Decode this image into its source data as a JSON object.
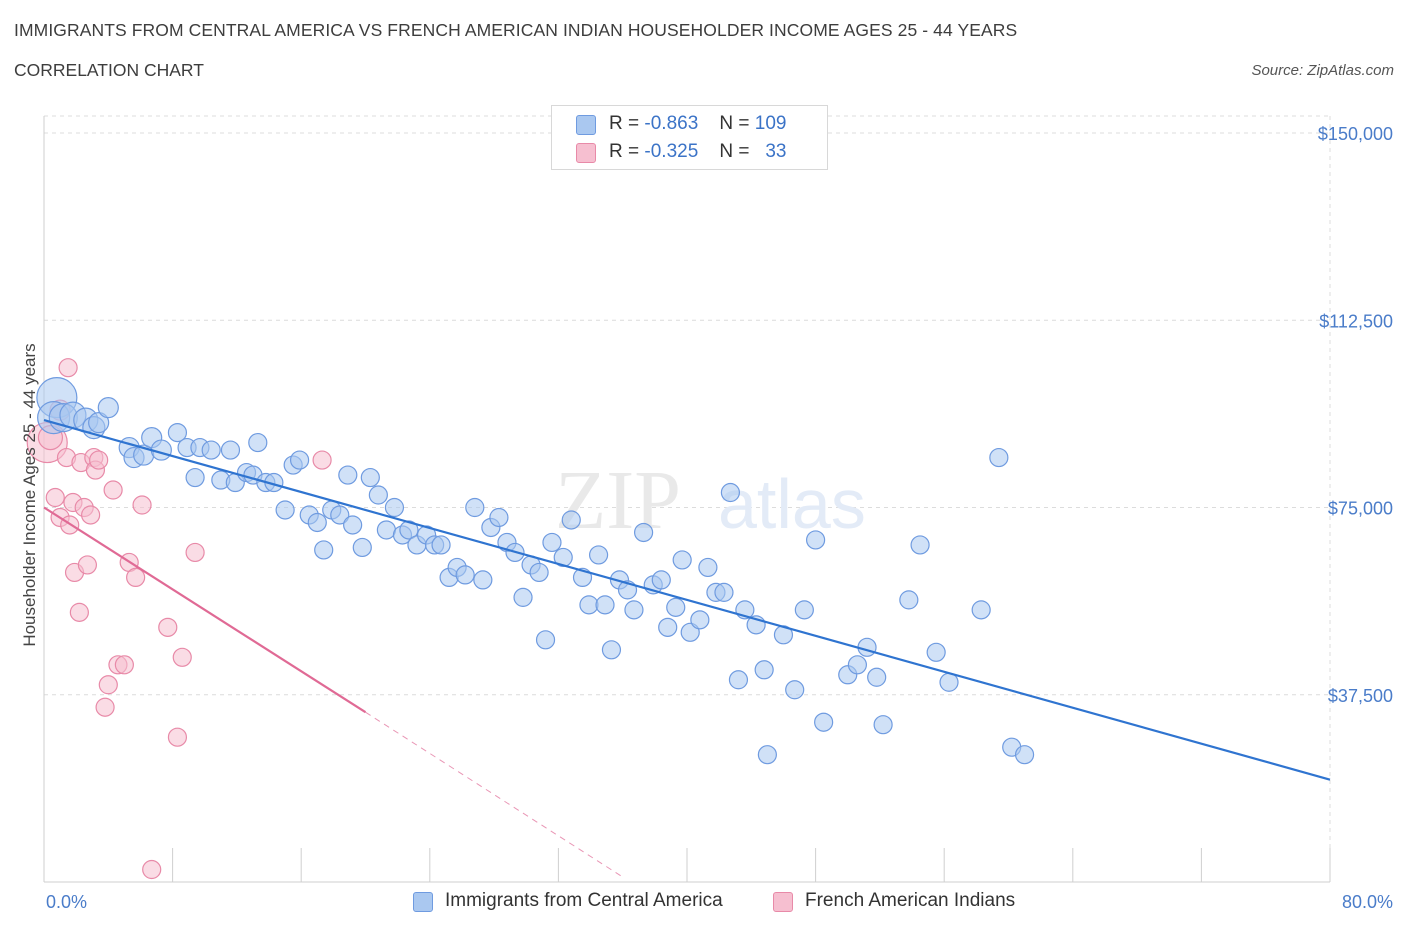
{
  "header": {
    "title": "IMMIGRANTS FROM CENTRAL AMERICA VS FRENCH AMERICAN INDIAN HOUSEHOLDER INCOME AGES 25 - 44 YEARS",
    "subtitle": "CORRELATION CHART",
    "source": "Source: ZipAtlas.com"
  },
  "watermark": {
    "part1": "ZIP",
    "part2": "atlas"
  },
  "legend": {
    "rows": [
      {
        "r_label": "R =",
        "r_value": "-0.863",
        "n_label": "N =",
        "n_value": "109"
      },
      {
        "r_label": "R =",
        "r_value": "-0.325",
        "n_label": "N =",
        "n_value": "33"
      }
    ]
  },
  "colors": {
    "blue_fill": "#aac8f0",
    "blue_stroke": "#6f9be0",
    "blue_line": "#2f74d0",
    "pink_fill": "#f6bfd0",
    "pink_stroke": "#e88aa8",
    "pink_line": "#e06a95",
    "grid": "#dcdcdc",
    "tick_text": "#4a7cc9"
  },
  "chart_data": {
    "type": "scatter",
    "title": "IMMIGRANTS FROM CENTRAL AMERICA VS FRENCH AMERICAN INDIAN HOUSEHOLDER INCOME AGES 25 - 44 YEARS",
    "subtitle": "CORRELATION CHART",
    "xlabel": "",
    "ylabel": "Householder Income Ages 25 - 44 years",
    "xlim": [
      0,
      80
    ],
    "ylim": [
      0,
      150000
    ],
    "x_tick_labels": [
      "0.0%",
      "80.0%"
    ],
    "y_ticks": [
      37500,
      75000,
      112500,
      150000
    ],
    "y_tick_labels": [
      "$37,500",
      "$75,000",
      "$112,500",
      "$150,000"
    ],
    "grid": true,
    "legend_position": "top-center",
    "series": [
      {
        "name": "Immigrants from Central America",
        "color": "#aac8f0",
        "trend": {
          "x": [
            0,
            80
          ],
          "y": [
            92500,
            20500
          ]
        },
        "points": [
          [
            0.8,
            97000,
            20
          ],
          [
            0.6,
            93000,
            16
          ],
          [
            1.2,
            93000,
            14
          ],
          [
            1.8,
            93500,
            13
          ],
          [
            2.6,
            92500,
            12
          ],
          [
            3.1,
            91000,
            11
          ],
          [
            3.4,
            92000,
            10
          ],
          [
            4.0,
            95000,
            10
          ],
          [
            5.3,
            87000,
            10
          ],
          [
            5.6,
            85000,
            10
          ],
          [
            6.2,
            85500,
            10
          ],
          [
            6.7,
            89000,
            10
          ],
          [
            7.3,
            86500,
            10
          ],
          [
            8.3,
            90000,
            9
          ],
          [
            8.9,
            87000,
            9
          ],
          [
            9.4,
            81000,
            9
          ],
          [
            9.7,
            87000,
            9
          ],
          [
            10.4,
            86500,
            9
          ],
          [
            11.0,
            80500,
            9
          ],
          [
            11.6,
            86500,
            9
          ],
          [
            11.9,
            80000,
            9
          ],
          [
            12.6,
            82000,
            9
          ],
          [
            13.0,
            81500,
            9
          ],
          [
            13.3,
            88000,
            9
          ],
          [
            13.8,
            80000,
            9
          ],
          [
            14.3,
            80000,
            9
          ],
          [
            15.0,
            74500,
            9
          ],
          [
            15.5,
            83500,
            9
          ],
          [
            15.9,
            84500,
            9
          ],
          [
            16.5,
            73500,
            9
          ],
          [
            17.0,
            72000,
            9
          ],
          [
            17.4,
            66500,
            9
          ],
          [
            17.9,
            74500,
            9
          ],
          [
            18.4,
            73500,
            9
          ],
          [
            18.9,
            81500,
            9
          ],
          [
            19.2,
            71500,
            9
          ],
          [
            19.8,
            67000,
            9
          ],
          [
            20.3,
            81000,
            9
          ],
          [
            20.8,
            77500,
            9
          ],
          [
            21.3,
            70500,
            9
          ],
          [
            21.8,
            75000,
            9
          ],
          [
            22.3,
            69500,
            9
          ],
          [
            22.7,
            70500,
            9
          ],
          [
            23.2,
            67500,
            9
          ],
          [
            23.8,
            69500,
            9
          ],
          [
            24.3,
            67500,
            9
          ],
          [
            24.7,
            67500,
            9
          ],
          [
            25.2,
            61000,
            9
          ],
          [
            25.7,
            63000,
            9
          ],
          [
            26.2,
            61500,
            9
          ],
          [
            26.8,
            75000,
            9
          ],
          [
            27.3,
            60500,
            9
          ],
          [
            27.8,
            71000,
            9
          ],
          [
            28.3,
            73000,
            9
          ],
          [
            28.8,
            68000,
            9
          ],
          [
            29.3,
            66000,
            9
          ],
          [
            29.8,
            57000,
            9
          ],
          [
            30.3,
            63500,
            9
          ],
          [
            30.8,
            62000,
            9
          ],
          [
            31.2,
            48500,
            9
          ],
          [
            31.6,
            68000,
            9
          ],
          [
            32.3,
            65000,
            9
          ],
          [
            32.8,
            72500,
            9
          ],
          [
            33.5,
            61000,
            9
          ],
          [
            33.9,
            55500,
            9
          ],
          [
            34.5,
            65500,
            9
          ],
          [
            34.9,
            55500,
            9
          ],
          [
            35.3,
            46500,
            9
          ],
          [
            35.8,
            60500,
            9
          ],
          [
            36.3,
            58500,
            9
          ],
          [
            36.7,
            54500,
            9
          ],
          [
            37.3,
            70000,
            9
          ],
          [
            37.9,
            59500,
            9
          ],
          [
            38.4,
            60500,
            9
          ],
          [
            38.8,
            51000,
            9
          ],
          [
            39.3,
            55000,
            9
          ],
          [
            39.7,
            64500,
            9
          ],
          [
            40.2,
            50000,
            9
          ],
          [
            40.8,
            52500,
            9
          ],
          [
            41.3,
            63000,
            9
          ],
          [
            41.8,
            58000,
            9
          ],
          [
            42.3,
            58000,
            9
          ],
          [
            42.7,
            78000,
            9
          ],
          [
            43.2,
            40500,
            9
          ],
          [
            43.6,
            54500,
            9
          ],
          [
            44.3,
            51500,
            9
          ],
          [
            44.8,
            42500,
            9
          ],
          [
            45.0,
            25500,
            9
          ],
          [
            46.0,
            49500,
            9
          ],
          [
            46.7,
            38500,
            9
          ],
          [
            47.3,
            54500,
            9
          ],
          [
            48.0,
            68500,
            9
          ],
          [
            48.5,
            32000,
            9
          ],
          [
            50.0,
            41500,
            9
          ],
          [
            50.6,
            43500,
            9
          ],
          [
            51.2,
            47000,
            9
          ],
          [
            51.8,
            41000,
            9
          ],
          [
            52.2,
            31500,
            9
          ],
          [
            53.8,
            56500,
            9
          ],
          [
            54.5,
            67500,
            9
          ],
          [
            55.5,
            46000,
            9
          ],
          [
            56.3,
            40000,
            9
          ],
          [
            58.3,
            54500,
            9
          ],
          [
            59.4,
            85000,
            9
          ],
          [
            60.2,
            27000,
            9
          ],
          [
            61.0,
            25500,
            9
          ]
        ]
      },
      {
        "name": "French American Indians",
        "color": "#f6bfd0",
        "trend": {
          "x": [
            0,
            20
          ],
          "y": [
            75000,
            34000
          ]
        },
        "trend_dashed": {
          "x": [
            20,
            36
          ],
          "y": [
            34000,
            1000
          ]
        },
        "points": [
          [
            0.2,
            88000,
            20
          ],
          [
            0.4,
            89000,
            12
          ],
          [
            1.0,
            94500,
            10
          ],
          [
            1.4,
            85000,
            9
          ],
          [
            1.5,
            103000,
            9
          ],
          [
            0.7,
            77000,
            9
          ],
          [
            1.0,
            73000,
            9
          ],
          [
            1.6,
            71500,
            9
          ],
          [
            1.8,
            76000,
            9
          ],
          [
            1.9,
            62000,
            9
          ],
          [
            2.2,
            54000,
            9
          ],
          [
            2.3,
            84000,
            9
          ],
          [
            2.5,
            75000,
            9
          ],
          [
            2.7,
            63500,
            9
          ],
          [
            2.9,
            73500,
            9
          ],
          [
            3.1,
            85000,
            9
          ],
          [
            3.2,
            82500,
            9
          ],
          [
            3.4,
            84500,
            9
          ],
          [
            3.8,
            35000,
            9
          ],
          [
            4.0,
            39500,
            9
          ],
          [
            4.3,
            78500,
            9
          ],
          [
            4.6,
            43500,
            9
          ],
          [
            5.0,
            43500,
            9
          ],
          [
            5.3,
            64000,
            9
          ],
          [
            5.7,
            61000,
            9
          ],
          [
            6.1,
            75500,
            9
          ],
          [
            6.7,
            2500,
            9
          ],
          [
            7.7,
            51000,
            9
          ],
          [
            8.3,
            29000,
            9
          ],
          [
            8.6,
            45000,
            9
          ],
          [
            9.4,
            66000,
            9
          ],
          [
            17.3,
            84500,
            9
          ]
        ]
      }
    ]
  },
  "bottom_legend": {
    "items": [
      {
        "label": "Immigrants from Central America"
      },
      {
        "label": "French American Indians"
      }
    ]
  }
}
